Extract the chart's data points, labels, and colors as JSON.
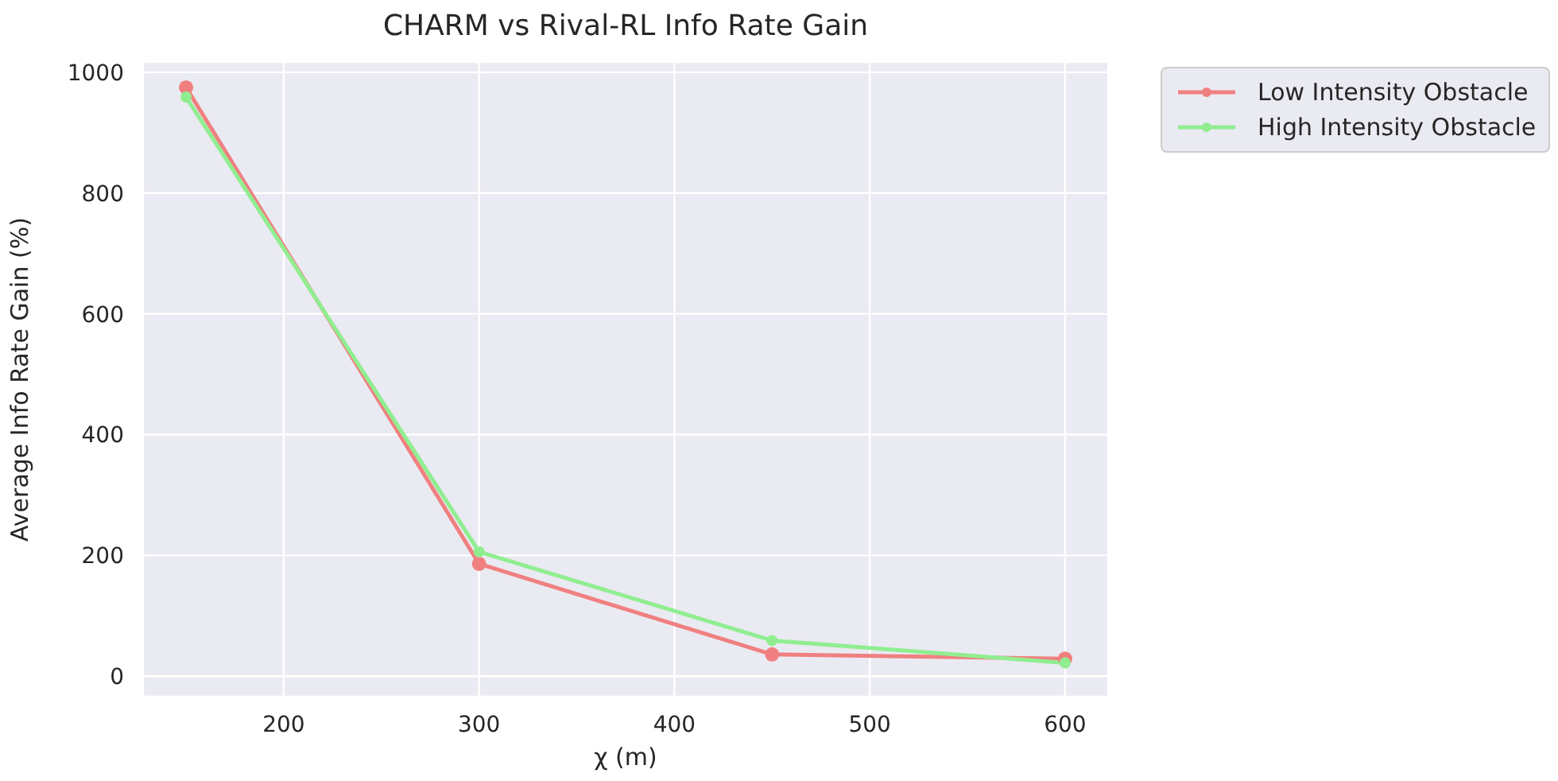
{
  "chart_data": {
    "type": "line",
    "title": "CHARM vs Rival-RL Info Rate Gain",
    "xlabel": "χ (m)",
    "ylabel": "Average Info Rate Gain (%)",
    "x": [
      150,
      300,
      450,
      600
    ],
    "series": [
      {
        "name": "Low Intensity Obstacle",
        "color": "#f08080",
        "values": [
          975,
          186,
          36,
          29
        ]
      },
      {
        "name": "High Intensity Obstacle",
        "color": "#90ee90",
        "values": [
          959,
          206,
          59,
          22
        ]
      }
    ],
    "xlim": [
      128,
      622
    ],
    "xticks": [
      200,
      300,
      400,
      500,
      600
    ],
    "ylim": [
      -34,
      1017
    ],
    "yticks": [
      0,
      200,
      400,
      600,
      800,
      1000
    ],
    "grid": true,
    "legend": "top right",
    "marker": "circle",
    "line_style": "solid"
  }
}
